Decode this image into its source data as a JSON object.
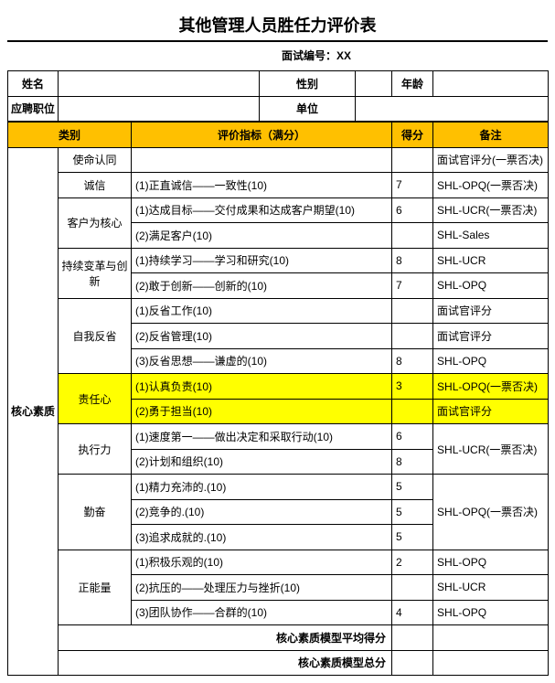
{
  "colors": {
    "header_bg": "#ffc000",
    "highlight_bg": "#ffff00",
    "border": "#000000",
    "bg": "#ffffff"
  },
  "title": "其他管理人员胜任力评价表",
  "interview_label": "面试编号：XX",
  "info_labels": {
    "name": "姓名",
    "gender": "性别",
    "age": "年龄",
    "position": "应聘职位",
    "unit": "单位"
  },
  "header": {
    "category": "类别",
    "indicator": "评价指标（满分）",
    "score": "得分",
    "remark": "备注"
  },
  "big_category": "核心素质",
  "rows": [
    {
      "sub": "使命认同",
      "indicator": "",
      "score": "",
      "remark": "面试官评分(一票否决)",
      "hl": false
    },
    {
      "sub": "诚信",
      "indicator": "(1)正直诚信——一致性(10)",
      "score": "7",
      "remark": "SHL-OPQ(一票否决)",
      "hl": false
    },
    {
      "sub": "客户为核心",
      "rowspan": 2,
      "indicator": "(1)达成目标——交付成果和达成客户期望(10)",
      "score": "6",
      "remark": "SHL-UCR(一票否决)",
      "hl": false
    },
    {
      "indicator": "(2)满足客户(10)",
      "score": "",
      "remark": "SHL-Sales",
      "hl": false
    },
    {
      "sub": "持续变革与创新",
      "rowspan": 2,
      "indicator": "(1)持续学习——学习和研究(10)",
      "score": "8",
      "remark": "SHL-UCR",
      "hl": false
    },
    {
      "indicator": "(2)敢于创新——创新的(10)",
      "score": "7",
      "remark": "SHL-OPQ",
      "hl": false
    },
    {
      "sub": "自我反省",
      "rowspan": 3,
      "indicator": "(1)反省工作(10)",
      "score": "",
      "remark": "面试官评分",
      "hl": false
    },
    {
      "indicator": "(2)反省管理(10)",
      "score": "",
      "remark": "面试官评分",
      "hl": false
    },
    {
      "indicator": "(3)反省思想——谦虚的(10)",
      "score": "8",
      "remark": "SHL-OPQ",
      "hl": false
    },
    {
      "sub": "责任心",
      "rowspan": 2,
      "indicator": "(1)认真负责(10)",
      "score": "3",
      "remark": "SHL-OPQ(一票否决)",
      "hl": true
    },
    {
      "indicator": "(2)勇于担当(10)",
      "score": "",
      "remark": "面试官评分",
      "hl": true
    },
    {
      "sub": "执行力",
      "rowspan": 2,
      "indicator": "(1)速度第一——做出决定和采取行动(10)",
      "score": "6",
      "remark": "SHL-UCR(一票否决)",
      "remark_rowspan": 2,
      "hl": false
    },
    {
      "indicator": "(2)计划和组织(10)",
      "score": "8",
      "hl": false
    },
    {
      "sub": "勤奋",
      "rowspan": 3,
      "indicator": "(1)精力充沛的.(10)",
      "score": "5",
      "remark": "SHL-OPQ(一票否决)",
      "remark_rowspan": 3,
      "hl": false
    },
    {
      "indicator": "(2)竞争的.(10)",
      "score": "5",
      "hl": false
    },
    {
      "indicator": "(3)追求成就的.(10)",
      "score": "5",
      "hl": false
    },
    {
      "sub": "正能量",
      "rowspan": 3,
      "indicator": "(1)积极乐观的(10)",
      "score": "2",
      "remark": "SHL-OPQ",
      "hl": false
    },
    {
      "indicator": "(2)抗压的——处理压力与挫折(10)",
      "score": "",
      "remark": "SHL-UCR",
      "hl": false
    },
    {
      "indicator": "(3)团队协作——合群的(10)",
      "score": "4",
      "remark": "SHL-OPQ",
      "hl": false
    }
  ],
  "summary": {
    "avg_label": "核心素质模型平均得分",
    "total_label": "核心素质模型总分"
  }
}
